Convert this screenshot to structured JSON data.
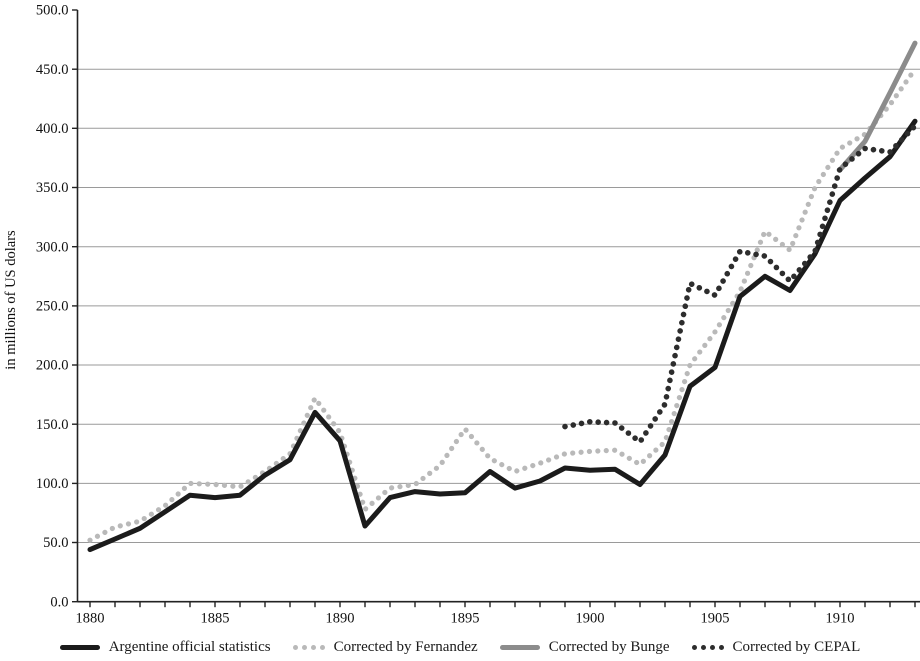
{
  "chart_data": {
    "type": "line",
    "title": "",
    "xlabel": "",
    "ylabel": "in millions of US dolars",
    "ylim": [
      0,
      500
    ],
    "ytick_step": 50,
    "ytick_labels": [
      "0.0",
      "50.0",
      "100.0",
      "150.0",
      "200.0",
      "250.0",
      "300.0",
      "350.0",
      "400.0",
      "450.0",
      "500.0"
    ],
    "grid": "horizontal",
    "gridline_top_value": 450,
    "legend_position": "bottom",
    "x": [
      1880,
      1881,
      1882,
      1883,
      1884,
      1885,
      1886,
      1887,
      1888,
      1889,
      1890,
      1891,
      1892,
      1893,
      1894,
      1895,
      1896,
      1897,
      1898,
      1899,
      1900,
      1901,
      1902,
      1903,
      1904,
      1905,
      1906,
      1907,
      1908,
      1909,
      1910,
      1911,
      1912,
      1913
    ],
    "xtick_label_years": [
      1880,
      1885,
      1890,
      1895,
      1900,
      1905,
      1910
    ],
    "series": [
      {
        "name": "Argentine official statistics",
        "style": "solid",
        "color": "#1b1b1b",
        "stroke_width": 5,
        "values": [
          44,
          53,
          62,
          76,
          90,
          88,
          90,
          107,
          120,
          160,
          136,
          64,
          88,
          93,
          91,
          92,
          110,
          96,
          102,
          113,
          111,
          112,
          99,
          124,
          182,
          198,
          258,
          275,
          263,
          294,
          339,
          358,
          376,
          406
        ]
      },
      {
        "name": "Corrected by Fernandez",
        "style": "dotted",
        "color": "#b9b9b9",
        "stroke_width": 5.2,
        "values": [
          52,
          63,
          68,
          81,
          100,
          99,
          97,
          110,
          125,
          172,
          143,
          78,
          96,
          99,
          115,
          146,
          121,
          110,
          117,
          125,
          127,
          128,
          116,
          135,
          200,
          228,
          262,
          313,
          297,
          350,
          383,
          395,
          420,
          450
        ]
      },
      {
        "name": "Corrected by Bunge",
        "style": "solid",
        "color": "#8c8c8c",
        "stroke_width": 5,
        "values": [
          null,
          null,
          null,
          null,
          null,
          null,
          null,
          null,
          null,
          null,
          null,
          null,
          null,
          null,
          null,
          null,
          null,
          null,
          null,
          null,
          null,
          null,
          null,
          null,
          null,
          null,
          null,
          null,
          null,
          null,
          365,
          389,
          430,
          472
        ]
      },
      {
        "name": "Corrected by CEPAL",
        "style": "dotted",
        "color": "#2d2d2d",
        "stroke_width": 5.6,
        "values": [
          null,
          null,
          null,
          null,
          null,
          null,
          null,
          null,
          null,
          null,
          null,
          null,
          null,
          null,
          null,
          null,
          null,
          null,
          null,
          148,
          152,
          151,
          135,
          167,
          269,
          259,
          296,
          292,
          271,
          296,
          366,
          383,
          380,
          402
        ]
      }
    ],
    "axis_color": "#222222",
    "gridline_color": "#9a9a9a",
    "text_color": "#111111"
  }
}
